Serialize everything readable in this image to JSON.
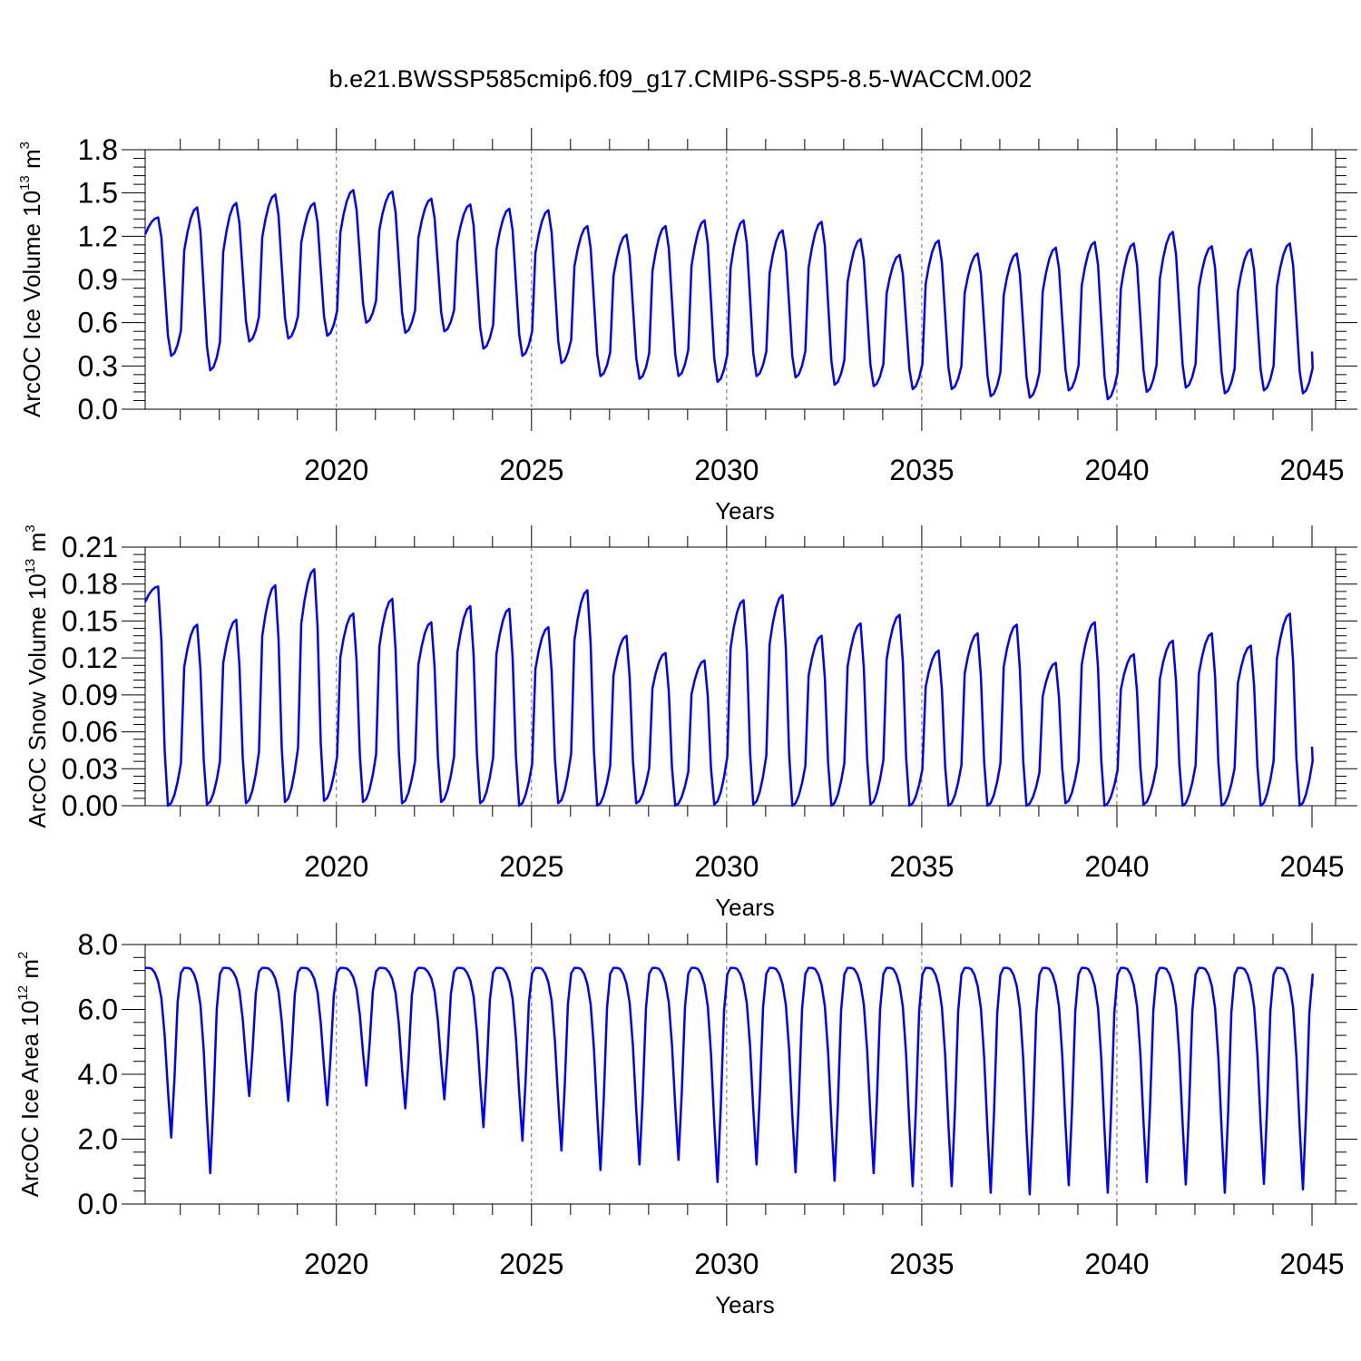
{
  "title": "b.e21.BWSSP585cmip6.f09_g17.CMIP6-SSP5-8.5-WACCM.002",
  "chart_data": [
    {
      "type": "line",
      "id": "ice-volume",
      "ylabel": {
        "main": "ArcOC Ice Volume 10",
        "exp": "13",
        "unit": " m",
        "unit_exp": "3"
      },
      "xlabel": "Years",
      "xlim": [
        2015.1,
        2045.0
      ],
      "ylim": [
        0.0,
        1.8
      ],
      "yticks": [
        "0.0",
        "0.3",
        "0.6",
        "0.9",
        "1.2",
        "1.5",
        "1.8"
      ],
      "xticks": [
        "2020",
        "2025",
        "2030",
        "2035",
        "2040",
        "2045"
      ],
      "series": [
        {
          "name": "ArcOC Ice Volume",
          "color": "#0000ff",
          "start": 2015.1,
          "seasonal": {
            "peak_month": 4,
            "min_month": 8,
            "maxima": [
              1.33,
              1.4,
              1.43,
              1.49,
              1.43,
              1.52,
              1.51,
              1.46,
              1.42,
              1.39,
              1.38,
              1.27,
              1.21,
              1.27,
              1.31,
              1.31,
              1.24,
              1.3,
              1.18,
              1.07,
              1.17,
              1.08,
              1.08,
              1.12,
              1.16,
              1.15,
              1.23,
              1.13,
              1.11,
              1.15
            ],
            "minima": [
              0.37,
              0.27,
              0.47,
              0.49,
              0.51,
              0.6,
              0.53,
              0.54,
              0.42,
              0.37,
              0.32,
              0.23,
              0.21,
              0.23,
              0.19,
              0.23,
              0.22,
              0.17,
              0.16,
              0.14,
              0.14,
              0.09,
              0.08,
              0.13,
              0.07,
              0.12,
              0.15,
              0.11,
              0.13,
              0.11
            ]
          },
          "end_value": 0.4
        }
      ]
    },
    {
      "type": "line",
      "id": "snow-volume",
      "ylabel": {
        "main": "ArcOC Snow Volume 10",
        "exp": "13",
        "unit": " m",
        "unit_exp": "3"
      },
      "xlabel": "Years",
      "xlim": [
        2015.1,
        2045.0
      ],
      "ylim": [
        0.0,
        0.21
      ],
      "yticks": [
        "0.00",
        "0.03",
        "0.06",
        "0.09",
        "0.12",
        "0.15",
        "0.18",
        "0.21"
      ],
      "xticks": [
        "2020",
        "2025",
        "2030",
        "2035",
        "2040",
        "2045"
      ],
      "series": [
        {
          "name": "ArcOC Snow Volume",
          "color": "#0000ff",
          "start": 2015.1,
          "seasonal": {
            "peak_month": 4,
            "min_month": 7,
            "maxima": [
              0.178,
              0.147,
              0.151,
              0.179,
              0.192,
              0.156,
              0.168,
              0.149,
              0.162,
              0.16,
              0.145,
              0.175,
              0.138,
              0.124,
              0.118,
              0.167,
              0.171,
              0.138,
              0.148,
              0.155,
              0.126,
              0.14,
              0.147,
              0.116,
              0.149,
              0.123,
              0.134,
              0.14,
              0.13,
              0.156
            ],
            "minima": [
              0.0,
              0.001,
              0.002,
              0.003,
              0.004,
              0.003,
              0.002,
              0.003,
              0.002,
              0.0,
              0.002,
              0.0,
              0.002,
              0.0,
              0.001,
              0.001,
              0.0,
              0.0,
              0.001,
              0.0,
              0.0,
              0.0,
              0.0,
              0.002,
              0.0,
              0.001,
              0.0,
              0.0,
              0.0,
              0.0
            ]
          },
          "end_value": 0.048
        }
      ]
    },
    {
      "type": "line",
      "id": "ice-area",
      "ylabel": {
        "main": "ArcOC Ice Area 10",
        "exp": "12",
        "unit": " m",
        "unit_exp": "2"
      },
      "xlabel": "Years",
      "xlim": [
        2015.1,
        2045.0
      ],
      "ylim": [
        0.0,
        8.0
      ],
      "yticks": [
        "0.0",
        "2.0",
        "4.0",
        "6.0",
        "8.0"
      ],
      "xticks": [
        "2020",
        "2025",
        "2030",
        "2035",
        "2040",
        "2045"
      ],
      "series": [
        {
          "name": "ArcOC Ice Area",
          "color": "#0000ff",
          "start": 2015.1,
          "seasonal": {
            "plateau": 7.28,
            "minima": [
              2.05,
              0.95,
              3.33,
              3.18,
              3.05,
              3.65,
              2.95,
              3.23,
              2.37,
              1.95,
              1.65,
              1.05,
              1.22,
              1.36,
              0.68,
              1.22,
              0.98,
              0.72,
              0.95,
              0.55,
              0.55,
              0.35,
              0.3,
              0.58,
              0.35,
              0.68,
              0.6,
              0.35,
              0.62,
              0.45
            ]
          },
          "end_value": 6.7
        }
      ]
    }
  ]
}
